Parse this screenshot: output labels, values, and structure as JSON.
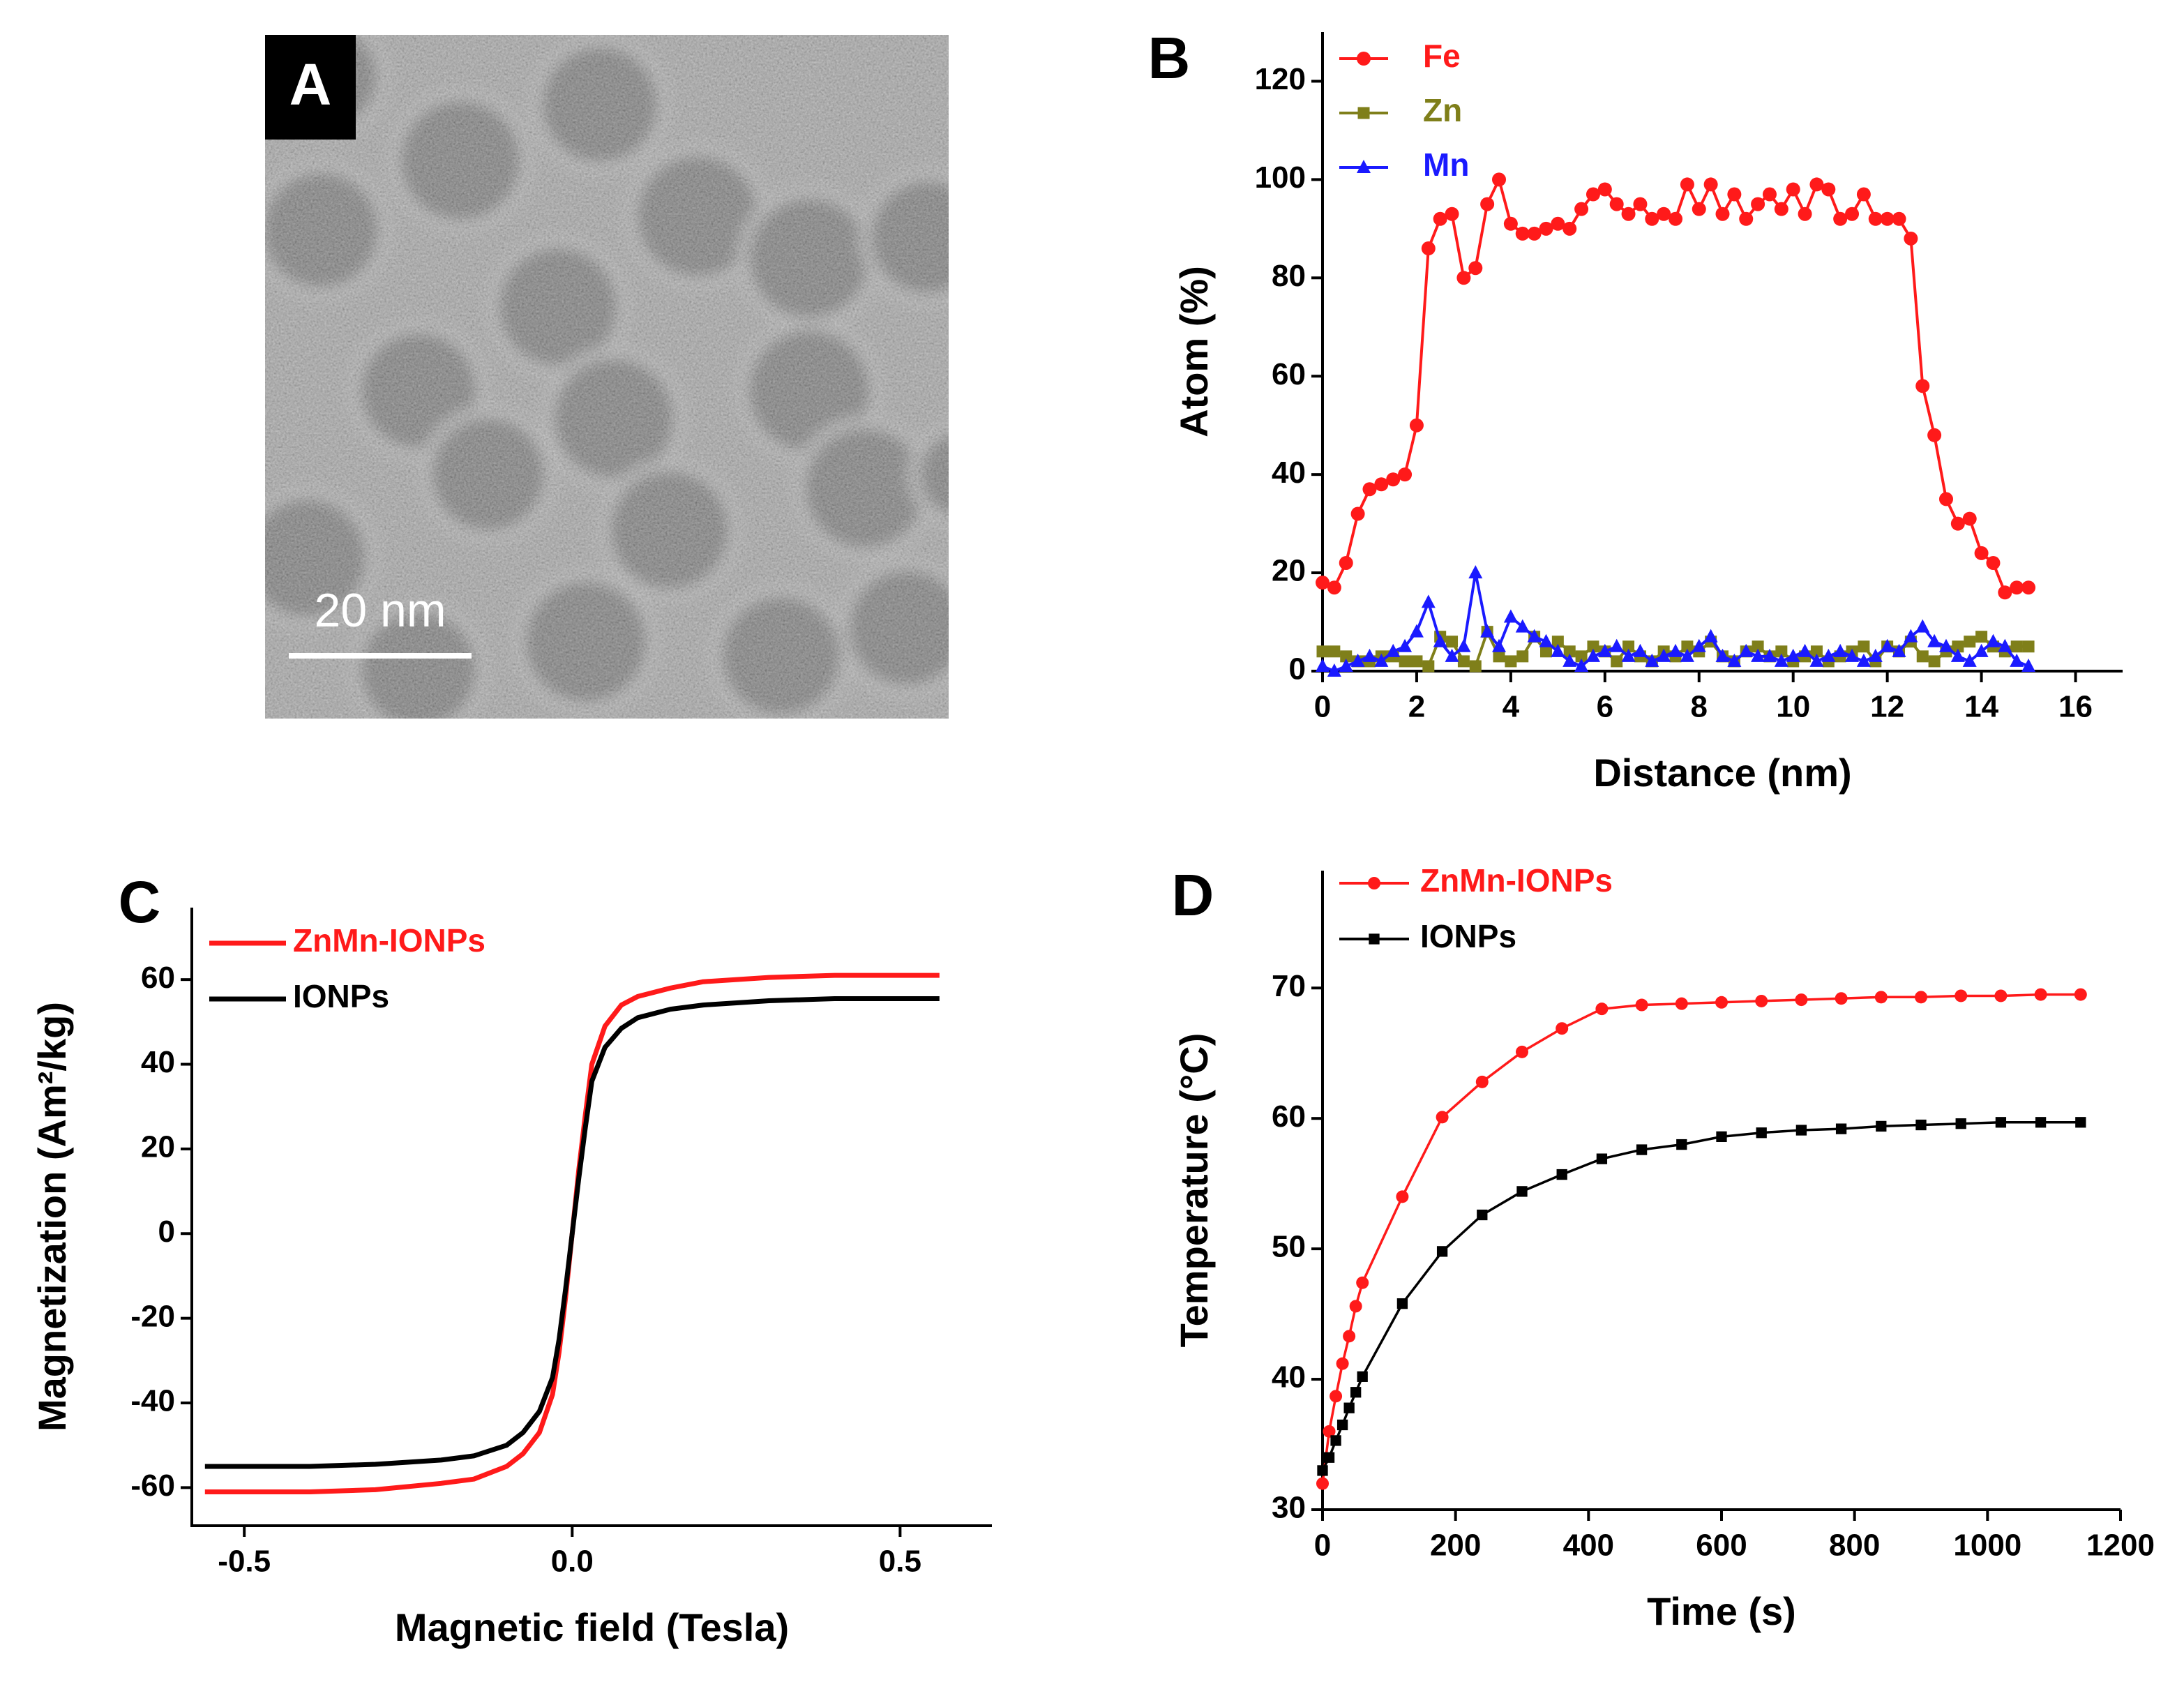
{
  "image": {
    "panel_label": "A",
    "scale_bar": "20 nm"
  },
  "chart_data": [
    {
      "type": "line",
      "panel_label": "B",
      "x_label": "Distance (nm)",
      "y_label": "Atom (%)",
      "xlim": [
        0,
        17
      ],
      "ylim": [
        0,
        130
      ],
      "xticks": [
        0,
        2,
        4,
        6,
        8,
        10,
        12,
        14,
        16
      ],
      "yticks": [
        0,
        20,
        40,
        60,
        80,
        100,
        120
      ],
      "legend": "upper left",
      "x": [
        0,
        0.25,
        0.5,
        0.75,
        1,
        1.25,
        1.5,
        1.75,
        2,
        2.25,
        2.5,
        2.75,
        3,
        3.25,
        3.5,
        3.75,
        4,
        4.25,
        4.5,
        4.75,
        5,
        5.25,
        5.5,
        5.75,
        6,
        6.25,
        6.5,
        6.75,
        7,
        7.25,
        7.5,
        7.75,
        8,
        8.25,
        8.5,
        8.75,
        9,
        9.25,
        9.5,
        9.75,
        10,
        10.25,
        10.5,
        10.75,
        11,
        11.25,
        11.5,
        11.75,
        12,
        12.25,
        12.5,
        12.75,
        13,
        13.25,
        13.5,
        13.75,
        14,
        14.25,
        14.5,
        14.75,
        15
      ],
      "series": [
        {
          "name": "Fe",
          "color": "#ff1a1a",
          "marker": "circle",
          "values": [
            18,
            17,
            22,
            32,
            37,
            38,
            39,
            40,
            50,
            86,
            92,
            93,
            80,
            82,
            95,
            100,
            91,
            89,
            89,
            90,
            91,
            90,
            94,
            97,
            98,
            95,
            93,
            95,
            92,
            93,
            92,
            99,
            94,
            99,
            93,
            97,
            92,
            95,
            97,
            94,
            98,
            93,
            99,
            98,
            92,
            93,
            97,
            92,
            92,
            92,
            88,
            58,
            48,
            35,
            30,
            31,
            24,
            22,
            16,
            17,
            17
          ]
        },
        {
          "name": "Zn",
          "color": "#7f7f1a",
          "marker": "square",
          "values": [
            4,
            4,
            3,
            2,
            2,
            3,
            3,
            2,
            2,
            1,
            7,
            6,
            2,
            1,
            8,
            3,
            2,
            3,
            7,
            4,
            6,
            4,
            3,
            5,
            4,
            2,
            5,
            3,
            2,
            4,
            3,
            5,
            4,
            6,
            3,
            2,
            4,
            5,
            3,
            4,
            2,
            3,
            4,
            2,
            3,
            4,
            5,
            2,
            5,
            4,
            6,
            3,
            2,
            4,
            5,
            6,
            7,
            5,
            4,
            5,
            5
          ]
        },
        {
          "name": "Mn",
          "color": "#1a1aff",
          "marker": "triangle",
          "values": [
            1,
            0,
            1,
            2,
            3,
            2,
            4,
            5,
            8,
            14,
            6,
            3,
            5,
            20,
            8,
            5,
            11,
            9,
            7,
            6,
            4,
            2,
            1,
            3,
            4,
            5,
            3,
            4,
            2,
            3,
            4,
            3,
            5,
            7,
            3,
            2,
            4,
            3,
            3,
            2,
            3,
            4,
            2,
            3,
            4,
            3,
            2,
            3,
            5,
            4,
            7,
            9,
            6,
            5,
            3,
            2,
            4,
            6,
            5,
            2,
            1
          ]
        }
      ]
    },
    {
      "type": "line",
      "panel_label": "C",
      "x_label": "Magnetic field (Tesla)",
      "y_label": "Magnetization (Am²/kg)",
      "xlim": [
        -0.58,
        0.64
      ],
      "ylim": [
        -69,
        77
      ],
      "xticks": [
        -0.5,
        {
          "value": 0,
          "label": "0.0"
        },
        0.5
      ],
      "yticks": [
        -60,
        -40,
        -20,
        0,
        20,
        40,
        60
      ],
      "legend": "upper left",
      "x": [
        -0.56,
        -0.5,
        -0.4,
        -0.3,
        -0.2,
        -0.15,
        -0.1,
        -0.075,
        -0.05,
        -0.03,
        -0.02,
        -0.01,
        0,
        0.01,
        0.02,
        0.03,
        0.05,
        0.075,
        0.1,
        0.15,
        0.2,
        0.3,
        0.4,
        0.5,
        0.56
      ],
      "series": [
        {
          "name": "ZnMn-IONPs",
          "color": "#ff1a1a",
          "values": [
            -61,
            -61,
            -61,
            -60.5,
            -59,
            -58,
            -55,
            -52,
            -47,
            -38,
            -28,
            -15,
            0,
            15,
            28,
            40,
            49,
            54,
            56,
            58,
            59.5,
            60.5,
            61,
            61,
            61
          ]
        },
        {
          "name": "IONPs",
          "color": "#000000",
          "values": [
            -55,
            -55,
            -55,
            -54.5,
            -53.5,
            -52.5,
            -50,
            -47,
            -42,
            -34,
            -25,
            -13,
            0,
            13,
            25,
            36,
            44,
            48.5,
            51,
            53,
            54,
            55,
            55.5,
            55.5,
            55.5
          ]
        }
      ]
    },
    {
      "type": "line",
      "panel_label": "D",
      "x_label": "Time (s)",
      "y_label": "Temperature (°C)",
      "xlim": [
        0,
        1200
      ],
      "ylim": [
        30,
        79
      ],
      "xticks": [
        0,
        200,
        400,
        600,
        800,
        1000,
        1200
      ],
      "yticks": [
        30,
        40,
        50,
        60,
        70
      ],
      "legend": "upper left",
      "x": [
        0,
        10,
        20,
        30,
        40,
        50,
        60,
        120,
        180,
        240,
        300,
        360,
        420,
        480,
        540,
        600,
        660,
        720,
        780,
        840,
        900,
        960,
        1020,
        1080,
        1140
      ],
      "series": [
        {
          "name": "ZnMn-IONPs",
          "color": "#ff1a1a",
          "marker": "circle",
          "values": [
            32,
            36,
            38.7,
            41.2,
            43.3,
            45.6,
            47.4,
            54,
            60.1,
            62.8,
            65.1,
            66.9,
            68.4,
            68.7,
            68.8,
            68.9,
            69,
            69.1,
            69.2,
            69.3,
            69.3,
            69.4,
            69.4,
            69.5,
            69.5
          ]
        },
        {
          "name": "IONPs",
          "color": "#000000",
          "marker": "square",
          "values": [
            33,
            34,
            35.3,
            36.5,
            37.8,
            39,
            40.2,
            45.8,
            49.8,
            52.6,
            54.4,
            55.7,
            56.9,
            57.6,
            58,
            58.6,
            58.9,
            59.1,
            59.2,
            59.4,
            59.5,
            59.6,
            59.7,
            59.7,
            59.7
          ]
        }
      ]
    }
  ]
}
